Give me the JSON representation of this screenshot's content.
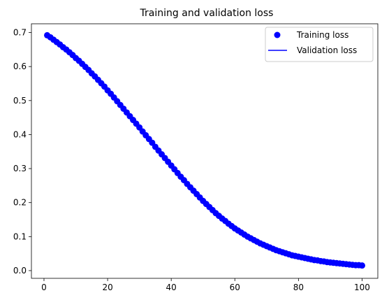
{
  "chart_data": {
    "type": "line",
    "title": "Training and validation loss",
    "xlabel": "",
    "ylabel": "",
    "xlim": [
      -3.95,
      104.95
    ],
    "ylim": [
      -0.0227,
      0.7258
    ],
    "xticks": [
      0,
      20,
      40,
      60,
      80,
      100
    ],
    "yticks": [
      0.0,
      0.1,
      0.2,
      0.3,
      0.4,
      0.5,
      0.6,
      0.7
    ],
    "grid": false,
    "legend_position": "top-right",
    "colors": {
      "series": "#0000ff",
      "axes": "#000000",
      "background": "#ffffff"
    },
    "series": [
      {
        "name": "Training loss",
        "style": "dots",
        "x": [
          1,
          2,
          3,
          4,
          5,
          6,
          7,
          8,
          9,
          10,
          11,
          12,
          13,
          14,
          15,
          16,
          17,
          18,
          19,
          20,
          21,
          22,
          23,
          24,
          25,
          26,
          27,
          28,
          29,
          30,
          31,
          32,
          33,
          34,
          35,
          36,
          37,
          38,
          39,
          40,
          41,
          42,
          43,
          44,
          45,
          46,
          47,
          48,
          49,
          50,
          51,
          52,
          53,
          54,
          55,
          56,
          57,
          58,
          59,
          60,
          61,
          62,
          63,
          64,
          65,
          66,
          67,
          68,
          69,
          70,
          71,
          72,
          73,
          74,
          75,
          76,
          77,
          78,
          79,
          80,
          81,
          82,
          83,
          84,
          85,
          86,
          87,
          88,
          89,
          90,
          91,
          92,
          93,
          94,
          95,
          96,
          97,
          98,
          99,
          100
        ],
        "values": [
          0.692,
          0.686,
          0.679,
          0.672,
          0.665,
          0.657,
          0.65,
          0.642,
          0.634,
          0.625,
          0.617,
          0.608,
          0.599,
          0.59,
          0.58,
          0.571,
          0.561,
          0.551,
          0.541,
          0.53,
          0.52,
          0.509,
          0.498,
          0.487,
          0.476,
          0.465,
          0.454,
          0.443,
          0.432,
          0.421,
          0.409,
          0.398,
          0.387,
          0.376,
          0.364,
          0.353,
          0.342,
          0.331,
          0.32,
          0.309,
          0.298,
          0.287,
          0.276,
          0.266,
          0.255,
          0.245,
          0.235,
          0.225,
          0.215,
          0.205,
          0.196,
          0.187,
          0.178,
          0.169,
          0.161,
          0.153,
          0.146,
          0.138,
          0.131,
          0.124,
          0.118,
          0.112,
          0.106,
          0.1,
          0.095,
          0.09,
          0.085,
          0.08,
          0.076,
          0.072,
          0.068,
          0.064,
          0.06,
          0.057,
          0.054,
          0.051,
          0.048,
          0.045,
          0.043,
          0.041,
          0.039,
          0.037,
          0.035,
          0.033,
          0.031,
          0.03,
          0.028,
          0.027,
          0.025,
          0.024,
          0.023,
          0.022,
          0.021,
          0.02,
          0.019,
          0.018,
          0.017,
          0.016,
          0.016,
          0.015
        ]
      },
      {
        "name": "Validation loss",
        "style": "line",
        "x": [
          1,
          5,
          10,
          15,
          20,
          25,
          30,
          35,
          40,
          45,
          50,
          55,
          60,
          65,
          70,
          75,
          80,
          85,
          90,
          95,
          100
        ],
        "values": [
          0.692,
          0.665,
          0.625,
          0.58,
          0.53,
          0.476,
          0.421,
          0.364,
          0.309,
          0.255,
          0.205,
          0.161,
          0.124,
          0.095,
          0.072,
          0.054,
          0.041,
          0.031,
          0.024,
          0.019,
          0.015
        ]
      }
    ]
  }
}
